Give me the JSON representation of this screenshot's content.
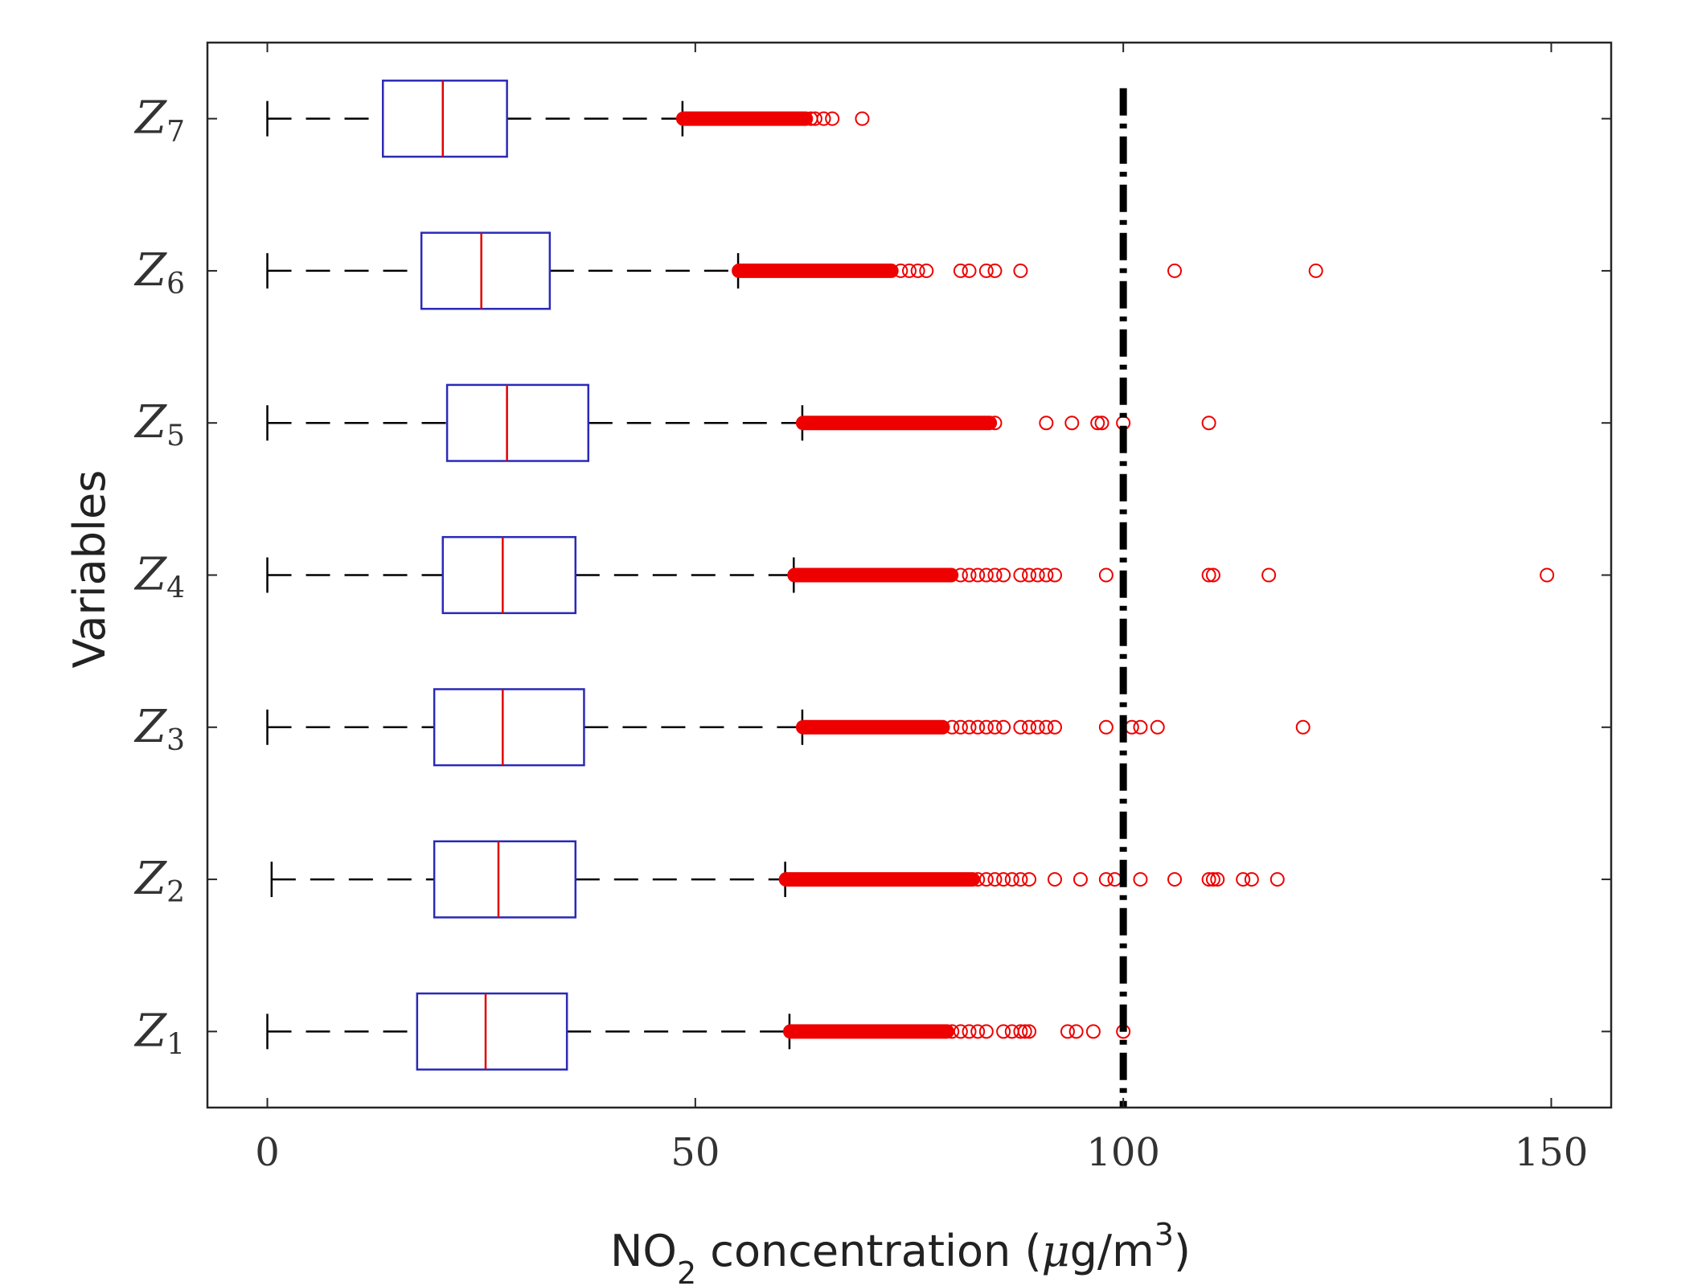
{
  "chart_data": {
    "type": "boxplot",
    "orientation": "horizontal",
    "title": "",
    "xlabel": {
      "prefix": "NO",
      "sub": "2",
      "suffix_before_mu": " concentration (",
      "mu": "μ",
      "unit": "g/m",
      "sup": "3",
      "close": ")"
    },
    "ylabel": "Variables",
    "xlim": [
      -7,
      157
    ],
    "xticks": [
      0,
      50,
      100,
      150
    ],
    "xtick_labels": [
      "0",
      "50",
      "100",
      "150"
    ],
    "threshold": {
      "value": 100,
      "style": "dash-dot",
      "color": "#000000"
    },
    "colors": {
      "box": "#2a2ab8",
      "median": "#e00000",
      "whisker": "#000000",
      "outlier": "#ee0000"
    },
    "categories": [
      {
        "label": "Z",
        "sub": "1",
        "whisker_low": 0,
        "q1": 17.5,
        "median": 25.5,
        "q3": 35,
        "whisker_high": 61,
        "dense_outliers": [
          61,
          79.5
        ],
        "outliers": [
          80,
          81,
          82,
          83,
          84,
          86,
          87,
          88,
          88.5,
          89,
          93.5,
          94.5,
          96.5,
          100
        ]
      },
      {
        "label": "Z",
        "sub": "2",
        "whisker_low": 0.5,
        "q1": 19.5,
        "median": 27,
        "q3": 36,
        "whisker_high": 60.5,
        "dense_outliers": [
          60.5,
          82.5
        ],
        "outliers": [
          83,
          84,
          85,
          86,
          87,
          88,
          89,
          92,
          95,
          98,
          99,
          102,
          106,
          110,
          110.5,
          111,
          114,
          115,
          118
        ]
      },
      {
        "label": "Z",
        "sub": "3",
        "whisker_low": 0,
        "q1": 19.5,
        "median": 27.5,
        "q3": 37,
        "whisker_high": 62.5,
        "dense_outliers": [
          62.5,
          79
        ],
        "outliers": [
          80,
          81,
          82,
          83,
          84,
          85,
          86,
          88,
          89,
          90,
          91,
          92,
          98,
          101,
          102,
          104,
          121
        ]
      },
      {
        "label": "Z",
        "sub": "4",
        "whisker_low": 0,
        "q1": 20.5,
        "median": 27.5,
        "q3": 36,
        "whisker_high": 61.5,
        "dense_outliers": [
          61.5,
          80
        ],
        "outliers": [
          81,
          82,
          83,
          84,
          85,
          86,
          88,
          89,
          90,
          91,
          92,
          98,
          110,
          110.5,
          117,
          149.5
        ]
      },
      {
        "label": "Z",
        "sub": "5",
        "whisker_low": 0,
        "q1": 21,
        "median": 28,
        "q3": 37.5,
        "whisker_high": 62.5,
        "dense_outliers": [
          62.5,
          84.5
        ],
        "outliers": [
          85,
          91,
          94,
          97,
          97.5,
          100,
          110
        ]
      },
      {
        "label": "Z",
        "sub": "6",
        "whisker_low": 0,
        "q1": 18,
        "median": 25,
        "q3": 33,
        "whisker_high": 55,
        "dense_outliers": [
          55,
          73
        ],
        "outliers": [
          74,
          75,
          76,
          77,
          81,
          82,
          84,
          85,
          88,
          106,
          122.5
        ]
      },
      {
        "label": "Z",
        "sub": "7",
        "whisker_low": 0,
        "q1": 13.5,
        "median": 20.5,
        "q3": 28,
        "whisker_high": 48.5,
        "dense_outliers": [
          48.5,
          63
        ],
        "outliers": [
          63.5,
          64,
          65,
          66,
          69.5
        ]
      }
    ]
  }
}
